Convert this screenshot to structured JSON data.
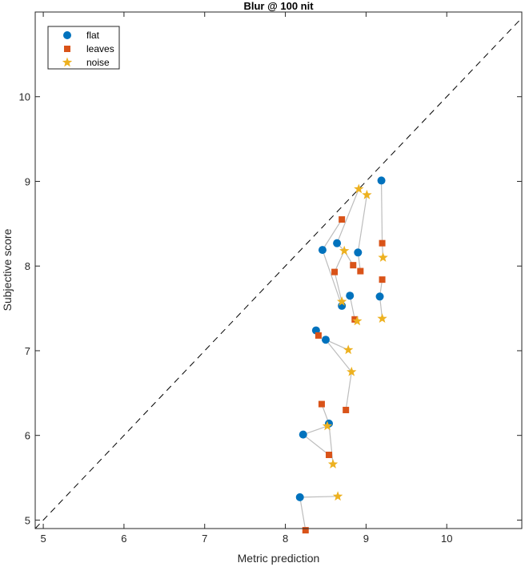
{
  "chart_data": {
    "type": "scatter",
    "title": "Blur @ 100 nit",
    "xlabel": "Metric prediction",
    "ylabel": "Subjective score",
    "xlim": [
      4.9,
      10.93
    ],
    "ylim": [
      4.9,
      11.0
    ],
    "xticks": [
      5,
      6,
      7,
      8,
      9,
      10
    ],
    "yticks": [
      5,
      6,
      7,
      8,
      9,
      10
    ],
    "grid": false,
    "legend_position": "top-left",
    "reference_line": "y = x (dashed)",
    "series": [
      {
        "name": "flat",
        "marker": "circle",
        "color": "#0072BD",
        "points": [
          [
            9.19,
            9.01
          ],
          [
            8.64,
            8.27
          ],
          [
            8.46,
            8.19
          ],
          [
            8.9,
            8.16
          ],
          [
            8.7,
            7.53
          ],
          [
            8.8,
            7.65
          ],
          [
            9.17,
            7.64
          ],
          [
            8.38,
            7.24
          ],
          [
            8.5,
            7.13
          ],
          [
            8.22,
            6.01
          ],
          [
            8.54,
            6.14
          ],
          [
            8.18,
            5.27
          ]
        ]
      },
      {
        "name": "leaves",
        "marker": "square",
        "color": "#D95319",
        "points": [
          [
            8.7,
            8.55
          ],
          [
            8.61,
            7.93
          ],
          [
            8.84,
            8.01
          ],
          [
            8.93,
            7.94
          ],
          [
            8.86,
            7.37
          ],
          [
            9.2,
            8.27
          ],
          [
            9.2,
            7.84
          ],
          [
            8.41,
            7.18
          ],
          [
            8.45,
            6.37
          ],
          [
            8.75,
            6.3
          ],
          [
            8.54,
            5.77
          ],
          [
            8.25,
            4.88
          ]
        ]
      },
      {
        "name": "noise",
        "marker": "star",
        "color": "#EDB120",
        "points": [
          [
            8.91,
            8.91
          ],
          [
            9.01,
            8.84
          ],
          [
            8.73,
            8.18
          ],
          [
            8.7,
            7.58
          ],
          [
            8.89,
            7.35
          ],
          [
            9.21,
            8.1
          ],
          [
            9.2,
            7.38
          ],
          [
            8.78,
            7.01
          ],
          [
            8.82,
            6.75
          ],
          [
            8.52,
            6.11
          ],
          [
            8.59,
            5.66
          ],
          [
            8.65,
            5.28
          ]
        ]
      }
    ],
    "connectors": [
      [
        [
          8.7,
          8.55
        ],
        [
          8.46,
          8.19
        ],
        [
          8.7,
          7.53
        ]
      ],
      [
        [
          8.91,
          8.91
        ],
        [
          8.64,
          8.27
        ],
        [
          8.73,
          8.18
        ],
        [
          8.84,
          8.01
        ]
      ],
      [
        [
          8.73,
          8.18
        ],
        [
          8.61,
          7.93
        ],
        [
          8.7,
          7.58
        ]
      ],
      [
        [
          9.01,
          8.84
        ],
        [
          8.9,
          8.16
        ],
        [
          8.93,
          7.94
        ]
      ],
      [
        [
          8.8,
          7.65
        ],
        [
          8.86,
          7.37
        ],
        [
          8.89,
          7.35
        ]
      ],
      [
        [
          9.19,
          9.01
        ],
        [
          9.2,
          8.27
        ],
        [
          9.21,
          8.1
        ]
      ],
      [
        [
          9.2,
          7.84
        ],
        [
          9.17,
          7.64
        ],
        [
          9.2,
          7.38
        ]
      ],
      [
        [
          8.78,
          7.01
        ],
        [
          8.5,
          7.13
        ],
        [
          8.82,
          6.75
        ],
        [
          8.75,
          6.3
        ]
      ],
      [
        [
          8.45,
          6.37
        ],
        [
          8.54,
          6.14
        ],
        [
          8.59,
          5.66
        ]
      ],
      [
        [
          8.52,
          6.11
        ],
        [
          8.22,
          6.01
        ],
        [
          8.54,
          5.77
        ]
      ],
      [
        [
          8.65,
          5.28
        ],
        [
          8.18,
          5.27
        ],
        [
          8.25,
          4.88
        ]
      ]
    ],
    "connector_color": "#BDBDBD"
  }
}
